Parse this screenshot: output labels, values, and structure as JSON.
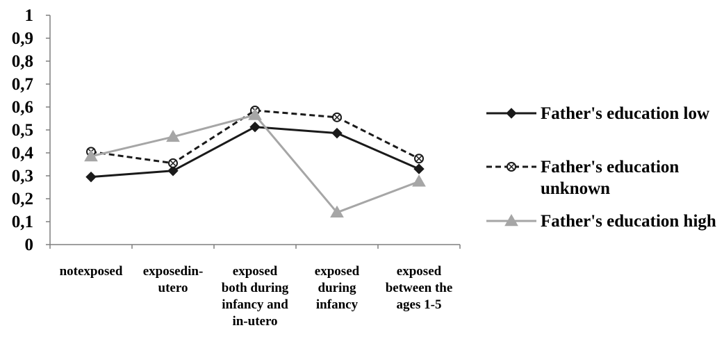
{
  "chart_data": {
    "type": "line",
    "categories": [
      [
        "notexposed"
      ],
      [
        "exposedin-",
        "utero"
      ],
      [
        "exposed",
        "both during",
        "infancy and",
        "in-utero"
      ],
      [
        "exposed",
        "during",
        "infancy"
      ],
      [
        "exposed",
        "between the",
        "ages 1-5"
      ]
    ],
    "y_tick_labels": [
      "0",
      "0,1",
      "0,2",
      "0,3",
      "0,4",
      "0,5",
      "0,6",
      "0,7",
      "0,8",
      "0,9",
      "1"
    ],
    "ylim": [
      0,
      1
    ],
    "grid": false,
    "legend_position": "right",
    "series": [
      {
        "name_lines": [
          "Father's education low"
        ],
        "values": [
          0.295,
          0.322,
          0.513,
          0.486,
          0.33
        ],
        "color": "#1a1a1a",
        "dash": "solid",
        "marker": "diamond"
      },
      {
        "name_lines": [
          "Father's education",
          "unknown"
        ],
        "values": [
          0.405,
          0.355,
          0.585,
          0.555,
          0.375
        ],
        "color": "#1a1a1a",
        "dash": "dashed",
        "marker": "circle-x"
      },
      {
        "name_lines": [
          "Father's education high"
        ],
        "values": [
          0.385,
          0.47,
          0.565,
          0.14,
          0.275
        ],
        "color": "#a6a6a6",
        "dash": "solid",
        "marker": "triangle"
      }
    ]
  }
}
